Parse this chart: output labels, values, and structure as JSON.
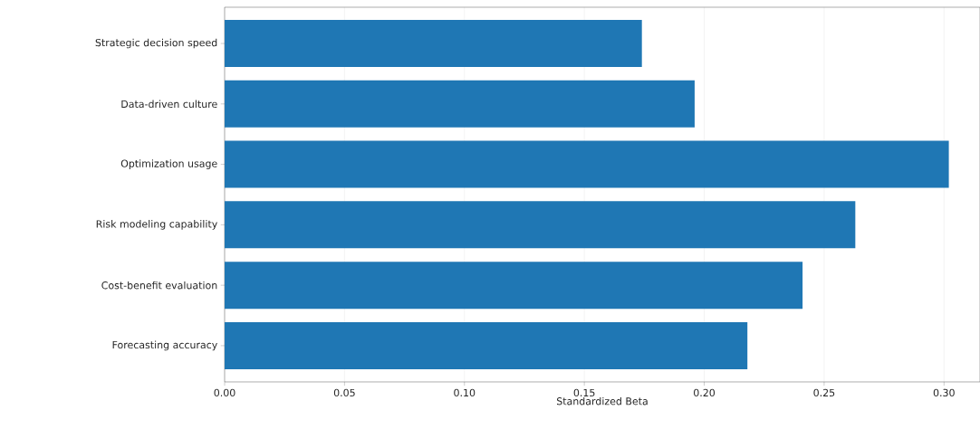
{
  "chart_data": {
    "type": "bar",
    "orientation": "horizontal",
    "xlabel": "Standardized Beta",
    "categories": [
      "Strategic decision speed",
      "Data-driven culture",
      "Optimization usage",
      "Risk modeling capability",
      "Cost-benefit evaluation",
      "Forecasting accuracy"
    ],
    "values": [
      0.174,
      0.196,
      0.302,
      0.263,
      0.241,
      0.218
    ],
    "color": "#1f77b4",
    "xlim": [
      0,
      0.315
    ],
    "xticks": [
      {
        "value": 0,
        "label": "0.00"
      },
      0.05,
      {
        "value": 0.1,
        "label": "0.10"
      },
      0.15,
      {
        "value": 0.2,
        "label": "0.20"
      },
      0.25,
      {
        "value": 0.3,
        "label": "0.30"
      }
    ],
    "grid": "x"
  }
}
